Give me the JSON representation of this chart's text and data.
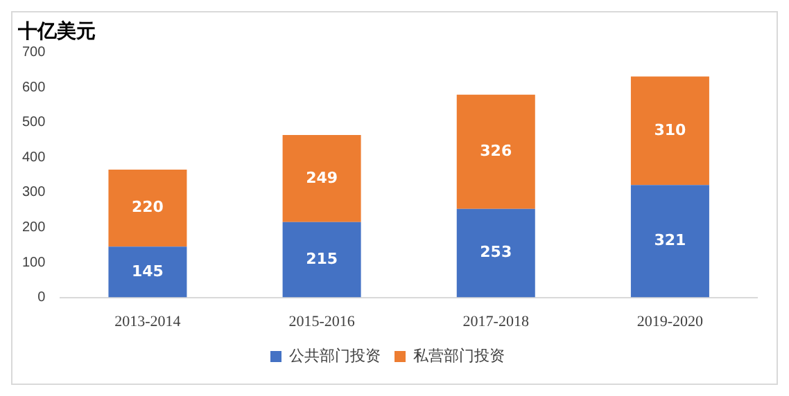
{
  "chart_data": {
    "type": "bar",
    "title": "十亿美元",
    "categories": [
      "2013-2014",
      "2015-2016",
      "2017-2018",
      "2019-2020"
    ],
    "stacked": true,
    "series": [
      {
        "name": "公共部门投资",
        "color": "#4472c4",
        "values": [
          145,
          215,
          253,
          321
        ]
      },
      {
        "name": "私营部门投资",
        "color": "#ed7d31",
        "values": [
          220,
          249,
          326,
          310
        ]
      }
    ],
    "ylim": [
      0,
      700
    ],
    "yticks": [
      0,
      100,
      200,
      300,
      400,
      500,
      600,
      700
    ],
    "grid": false,
    "legend": "bottom",
    "data_labels": true
  }
}
